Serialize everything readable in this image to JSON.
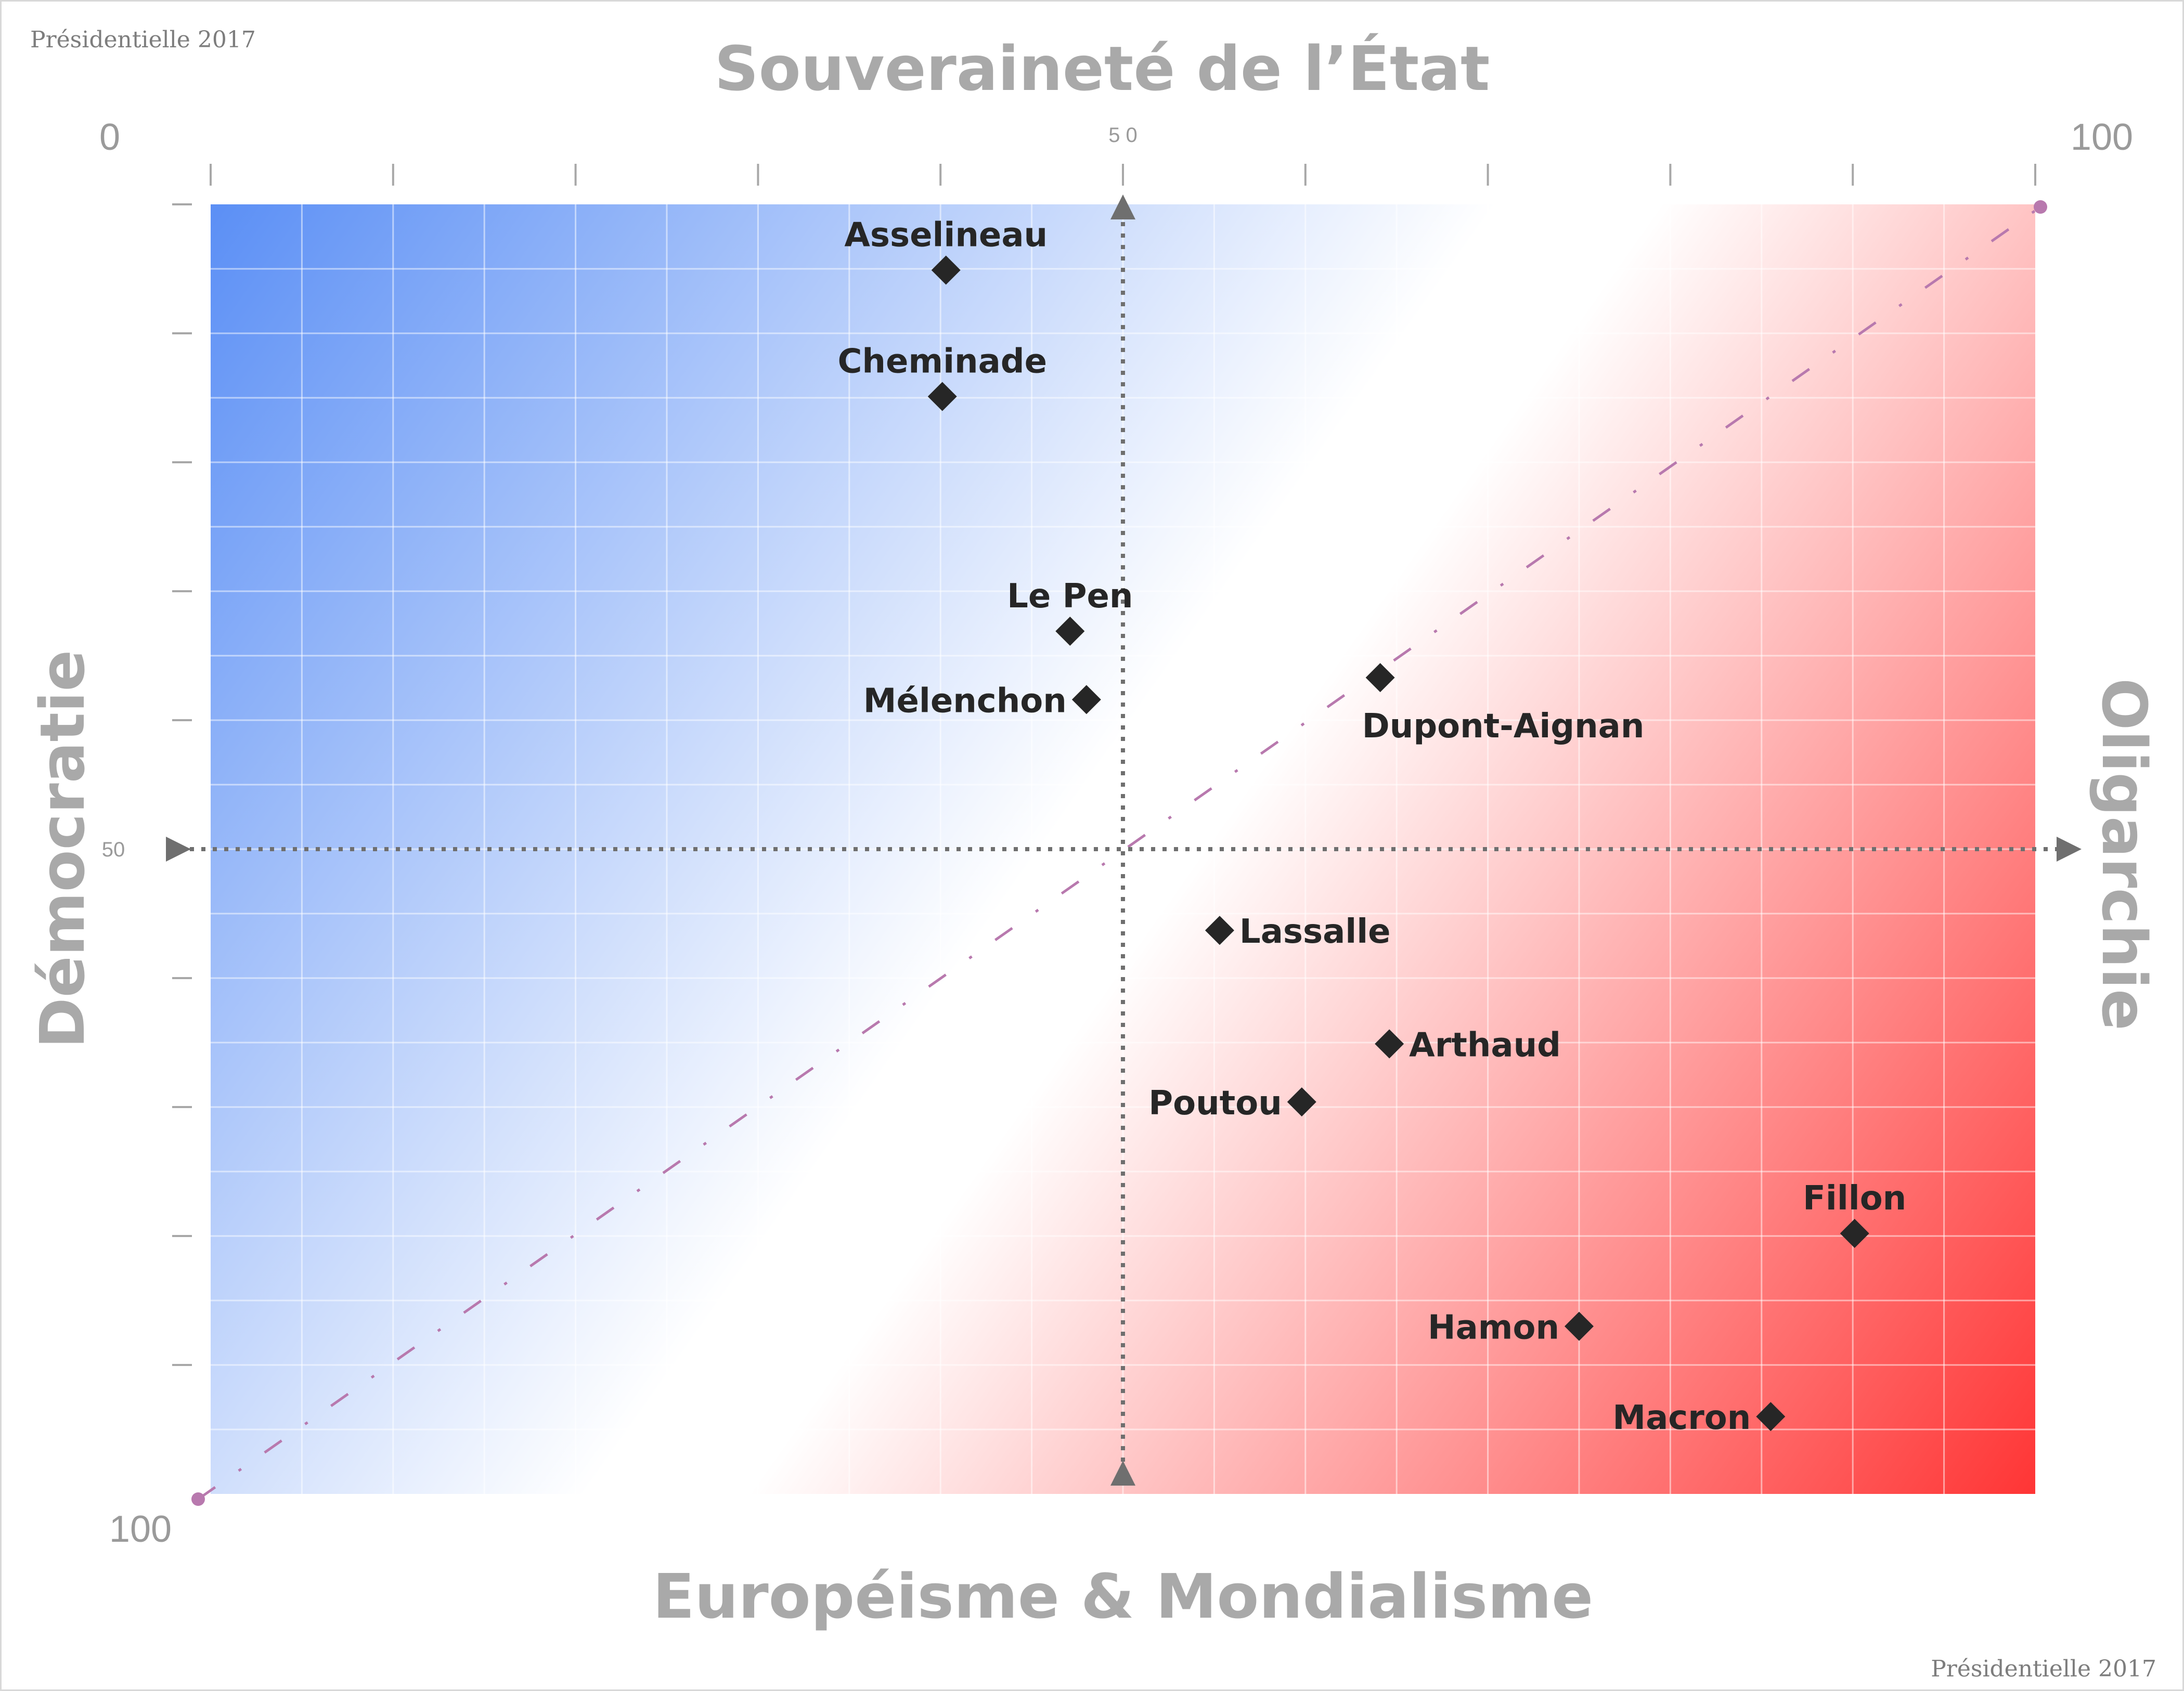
{
  "header_note": "Présidentielle 2017",
  "footer_note": "Présidentielle 2017",
  "chart_data": {
    "type": "scatter",
    "axes": {
      "top_title": "Souveraineté de l’État",
      "bottom_title": "Européisme & Mondialisme",
      "left_title": "Démocratie",
      "right_title": "Oligarchie",
      "x_range": [
        0,
        100
      ],
      "y_range": [
        0,
        100
      ],
      "x_tick_labels": [
        {
          "value": 0,
          "label": "0"
        },
        {
          "value": 50,
          "label": "5 0"
        },
        {
          "value": 100,
          "label": "100"
        }
      ],
      "y_tick_labels": [
        {
          "value": 50,
          "label": "50"
        },
        {
          "value": 100,
          "label": "100"
        }
      ],
      "grid": true,
      "center_crosshair": true,
      "diagonal_line": true
    },
    "points": [
      {
        "name": "Asselineau",
        "x": 40.3,
        "y": 5.1,
        "label_pos": "above"
      },
      {
        "name": "Cheminade",
        "x": 40.1,
        "y": 14.9,
        "label_pos": "above"
      },
      {
        "name": "Le Pen",
        "x": 47.1,
        "y": 33.1,
        "label_pos": "above"
      },
      {
        "name": "Mélenchon",
        "x": 48.0,
        "y": 38.4,
        "label_pos": "left"
      },
      {
        "name": "Dupont-Aignan",
        "x": 64.1,
        "y": 36.7,
        "label_pos": "below"
      },
      {
        "name": "Lassalle",
        "x": 55.3,
        "y": 56.3,
        "label_pos": "right"
      },
      {
        "name": "Arthaud",
        "x": 64.6,
        "y": 65.1,
        "label_pos": "right"
      },
      {
        "name": "Poutou",
        "x": 59.8,
        "y": 69.6,
        "label_pos": "left"
      },
      {
        "name": "Fillon",
        "x": 90.1,
        "y": 79.8,
        "label_pos": "above"
      },
      {
        "name": "Hamon",
        "x": 75.0,
        "y": 87.0,
        "label_pos": "left"
      },
      {
        "name": "Macron",
        "x": 85.5,
        "y": 94.0,
        "label_pos": "left"
      }
    ],
    "colors": {
      "top_left": "#5b8ff5",
      "middle": "#ffffff",
      "bottom_right": "#ff3535",
      "marker": "#262626",
      "axis_title": "#a9a9a9",
      "crosshair": "#6f6f6f",
      "diagonal": "#b879ae"
    }
  }
}
